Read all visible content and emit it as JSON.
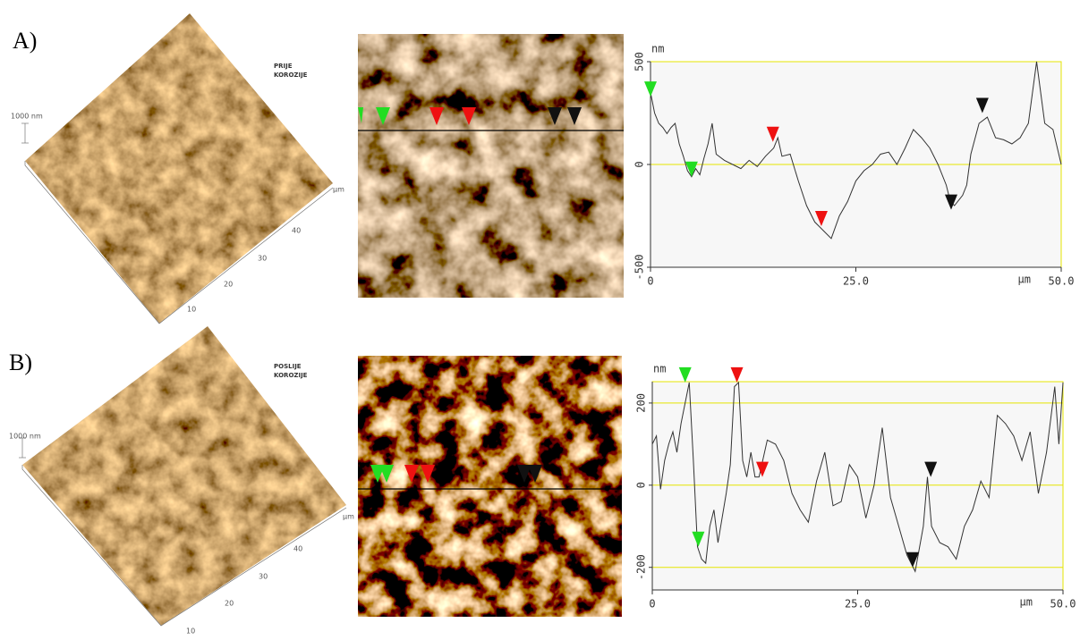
{
  "figure": {
    "panels": [
      {
        "label": "A)",
        "image_label": [
          "PRIJE",
          "KOROZIJE"
        ],
        "scale_label": "1000 nm",
        "axis_ticks": [
          "10",
          "20",
          "30",
          "40"
        ],
        "axis_unit": "μm"
      },
      {
        "label": "B)",
        "image_label": [
          "POSLIJE",
          "KOROZIJE"
        ],
        "scale_label": "1000 nm",
        "axis_ticks": [
          "10",
          "20",
          "30",
          "40"
        ],
        "axis_unit": "μm"
      }
    ]
  },
  "chart_data": [
    {
      "type": "line",
      "y_label": "nm",
      "x_label": "μm",
      "x": [
        0,
        0.5,
        1,
        1.5,
        2,
        2.5,
        3,
        3.5,
        4,
        4.5,
        5,
        5.5,
        6,
        6.5,
        7,
        7.5,
        8,
        9,
        10,
        11,
        12,
        13,
        14,
        15,
        15.5,
        16,
        17,
        18,
        19,
        20,
        21,
        22,
        23,
        24,
        25,
        26,
        27,
        28,
        29,
        30,
        31,
        32,
        33,
        34,
        35,
        36,
        36.5,
        37,
        38,
        38.5,
        39,
        40,
        41,
        42,
        43,
        44,
        45,
        46,
        47,
        48,
        49,
        50
      ],
      "series": [
        {
          "color": "#333333",
          "values": [
            350,
            250,
            200,
            180,
            150,
            180,
            200,
            100,
            40,
            -30,
            -60,
            -20,
            -50,
            30,
            100,
            200,
            50,
            20,
            0,
            -20,
            20,
            -10,
            40,
            80,
            130,
            40,
            50,
            -80,
            -200,
            -280,
            -320,
            -360,
            -250,
            -180,
            -80,
            -30,
            0,
            50,
            60,
            0,
            80,
            170,
            130,
            80,
            0,
            -100,
            -180,
            -200,
            -150,
            -100,
            50,
            200,
            230,
            130,
            120,
            100,
            130,
            200,
            500,
            200,
            170,
            0
          ]
        }
      ],
      "markers": [
        {
          "color": "#22dd22",
          "x": [
            0,
            5
          ],
          "values": [
            330,
            -60
          ]
        },
        {
          "color": "#ee1111",
          "x": [
            14.9,
            20.8
          ],
          "values": [
            110,
            -300
          ]
        },
        {
          "color": "#111111",
          "x": [
            36.6,
            40.4
          ],
          "values": [
            -220,
            250
          ]
        }
      ],
      "xlim": [
        0,
        50
      ],
      "ylim": [
        -500,
        500
      ],
      "xticks": [
        0,
        {
          "value": 25,
          "label": "25.0"
        },
        {
          "value": 50,
          "label": "50.0"
        }
      ],
      "yticks": [
        -500,
        0,
        500
      ],
      "grid_color": "#e6e600"
    },
    {
      "type": "line",
      "y_label": "nm",
      "x_label": "μm",
      "x": [
        0,
        0.5,
        1,
        1.5,
        2,
        2.5,
        3,
        3.5,
        4,
        4.5,
        5,
        5.5,
        6,
        6.5,
        7,
        7.5,
        8,
        8.5,
        9,
        9.5,
        10,
        10.5,
        11,
        11.5,
        12,
        12.5,
        13,
        14,
        15,
        16,
        17,
        18,
        19,
        20,
        21,
        22,
        23,
        24,
        25,
        26,
        27,
        28,
        29,
        30,
        31,
        32,
        33,
        33.5,
        34,
        35,
        36,
        37,
        38,
        39,
        40,
        41,
        42,
        43,
        44,
        45,
        46,
        47,
        48,
        49,
        49.5,
        50
      ],
      "series": [
        {
          "color": "#333333",
          "values": [
            100,
            120,
            -10,
            60,
            100,
            130,
            80,
            150,
            200,
            250,
            60,
            -150,
            -180,
            -190,
            -100,
            -60,
            -140,
            -80,
            -20,
            50,
            240,
            250,
            60,
            20,
            80,
            20,
            20,
            110,
            100,
            60,
            -20,
            -60,
            -90,
            10,
            80,
            -50,
            -40,
            50,
            20,
            -80,
            0,
            140,
            -30,
            -100,
            -170,
            -210,
            -100,
            20,
            -100,
            -140,
            -150,
            -180,
            -100,
            -60,
            10,
            -30,
            170,
            150,
            120,
            60,
            130,
            -20,
            80,
            240,
            100,
            250
          ]
        }
      ],
      "markers": [
        {
          "color": "#22dd22",
          "x": [
            4,
            5.6
          ],
          "values": [
            250,
            -150
          ]
        },
        {
          "color": "#ee1111",
          "x": [
            10.3,
            13.4
          ],
          "values": [
            250,
            20
          ]
        },
        {
          "color": "#111111",
          "x": [
            31.7,
            33.9
          ],
          "values": [
            -200,
            20
          ]
        }
      ],
      "xlim": [
        0,
        50
      ],
      "ylim": [
        -255,
        252
      ],
      "xticks": [
        0,
        {
          "value": 25,
          "label": "25.0"
        },
        {
          "value": 50,
          "label": "50.0"
        }
      ],
      "yticks": [
        -200,
        0,
        200
      ],
      "grid_color": "#e6e600"
    }
  ]
}
